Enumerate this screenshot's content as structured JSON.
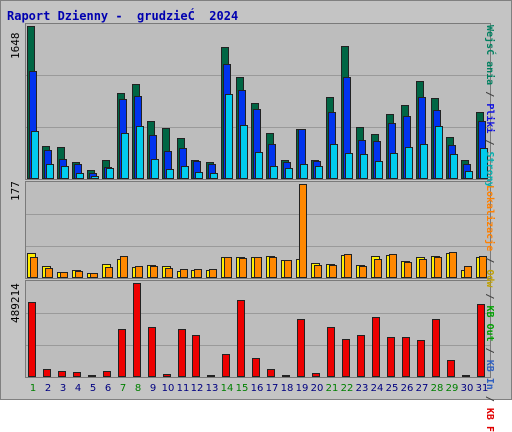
{
  "title": "Raport Dzienny -  grudzieĆ  2024",
  "max_labels": {
    "top": "1648",
    "mid": "177",
    "bot": "489214"
  },
  "legend": {
    "right_top": [
      {
        "text": "WejsĆ ania",
        "color": "#008060"
      },
      {
        "text": "/",
        "color": "#404040"
      },
      {
        "text": "Pliki",
        "color": "#1010e0"
      },
      {
        "text": "/",
        "color": "#404040"
      },
      {
        "text": "Strony",
        "color": "#00b0b0"
      }
    ],
    "right_bottom": [
      {
        "text": "Lokalizacje",
        "color": "#ff8000"
      },
      {
        "text": "/",
        "color": "#404040"
      },
      {
        "text": "Odw",
        "color": "#c0a000"
      },
      {
        "text": "/",
        "color": "#404040"
      },
      {
        "text": "KB Out",
        "color": "#00a000"
      },
      {
        "text": "/",
        "color": "#404040"
      },
      {
        "text": "KB In",
        "color": "#3060c0"
      },
      {
        "text": "/",
        "color": "#404040"
      },
      {
        "text": "KB F",
        "color": "#e00000"
      }
    ]
  },
  "colors": {
    "visits": "#006644",
    "files": "#0033ee",
    "pages": "#00ccee",
    "sites": "#ffee00",
    "visitors": "#ff8800",
    "kb": "#ee0000",
    "weekend_day": "#008000",
    "weekday": "#000080"
  },
  "chart_data": {
    "type": "bar",
    "categories": [
      "1",
      "2",
      "3",
      "4",
      "5",
      "6",
      "7",
      "8",
      "9",
      "10",
      "11",
      "12",
      "13",
      "14",
      "15",
      "16",
      "17",
      "18",
      "19",
      "20",
      "21",
      "22",
      "23",
      "24",
      "25",
      "26",
      "27",
      "28",
      "29",
      "30",
      "31"
    ],
    "weekend_days": [
      "1",
      "7",
      "8",
      "14",
      "15",
      "21",
      "22",
      "28",
      "29"
    ],
    "top_panel": {
      "max": 1648,
      "series": [
        {
          "name": "WejsĆ ania",
          "values": [
            1648,
            360,
            350,
            180,
            100,
            200,
            930,
            1020,
            630,
            550,
            440,
            200,
            180,
            1420,
            1100,
            820,
            500,
            200,
            540,
            210,
            880,
            1430,
            560,
            480,
            700,
            800,
            1060,
            870,
            450,
            200,
            720
          ]
        },
        {
          "name": "Pliki",
          "values": [
            1160,
            310,
            220,
            160,
            60,
            130,
            860,
            890,
            470,
            300,
            330,
            190,
            160,
            1240,
            960,
            750,
            380,
            180,
            540,
            190,
            720,
            1100,
            420,
            410,
            600,
            680,
            880,
            740,
            370,
            160,
            620
          ]
        },
        {
          "name": "Strony",
          "values": [
            520,
            160,
            140,
            70,
            30,
            120,
            500,
            570,
            220,
            110,
            140,
            80,
            60,
            920,
            580,
            290,
            140,
            120,
            160,
            140,
            380,
            280,
            270,
            190,
            280,
            340,
            380,
            570,
            270,
            90,
            330
          ]
        }
      ]
    },
    "middle_panel": {
      "max": 177,
      "series": [
        {
          "name": "Odw",
          "values": [
            48,
            22,
            12,
            15,
            9,
            26,
            36,
            20,
            25,
            22,
            13,
            16,
            16,
            40,
            39,
            40,
            41,
            34,
            35,
            28,
            26,
            44,
            24,
            42,
            43,
            32,
            40,
            41,
            48,
            16,
            40
          ]
        },
        {
          "name": "Lokalizacje",
          "values": [
            40,
            18,
            12,
            14,
            9,
            20,
            42,
            23,
            23,
            19,
            17,
            17,
            17,
            40,
            38,
            39,
            40,
            34,
            177,
            25,
            24,
            45,
            23,
            36,
            45,
            31,
            36,
            39,
            49,
            22,
            41
          ]
        }
      ]
    },
    "bottom_panel": {
      "max": 489214,
      "series": [
        {
          "name": "KB F",
          "values": [
            390000,
            40000,
            30000,
            25000,
            10000,
            30000,
            250000,
            489214,
            260000,
            15000,
            250000,
            220000,
            10000,
            120000,
            400000,
            100000,
            40000,
            10000,
            300000,
            20000,
            260000,
            200000,
            220000,
            310000,
            210000,
            210000,
            190000,
            300000,
            90000,
            10000,
            380000
          ]
        }
      ]
    }
  }
}
